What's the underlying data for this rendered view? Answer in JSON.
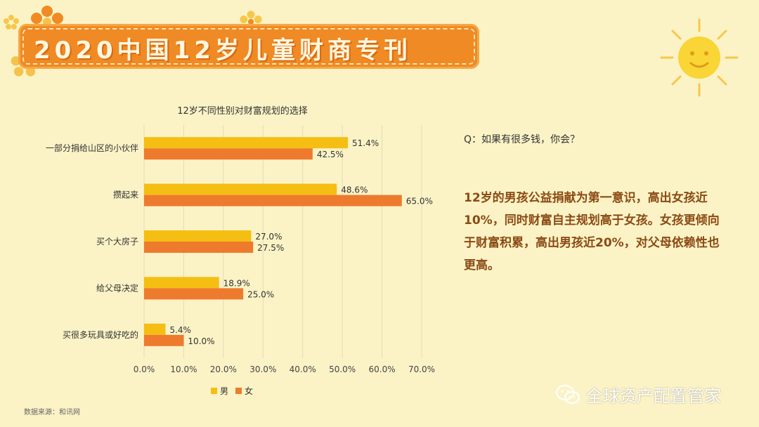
{
  "header": {
    "title": "2020中国12岁儿童财商专刊"
  },
  "chart_data": {
    "type": "bar",
    "orientation": "horizontal",
    "title": "12岁不同性别对财富规划的选择",
    "categories": [
      "一部分捐给山区的小伙伴",
      "攒起来",
      "买个大房子",
      "给父母决定",
      "买很多玩具或好吃的"
    ],
    "series": [
      {
        "name": "男",
        "values": [
          51.4,
          48.6,
          27.0,
          18.9,
          5.4
        ],
        "color": "#F5BE12"
      },
      {
        "name": "女",
        "values": [
          42.5,
          65.0,
          27.5,
          25.0,
          10.0
        ],
        "color": "#EE7A2E"
      }
    ],
    "value_labels": [
      [
        "51.4%",
        "48.6%",
        "27.0%",
        "18.9%",
        "5.4%"
      ],
      [
        "42.5%",
        "65.0%",
        "27.5%",
        "25.0%",
        "10.0%"
      ]
    ],
    "xlim": [
      0,
      70
    ],
    "xticks": [
      "0.0%",
      "10.0%",
      "20.0%",
      "30.0%",
      "40.0%",
      "50.0%",
      "60.0%",
      "70.0%"
    ],
    "grid": true,
    "legend_position": "bottom"
  },
  "source": "数据来源：和讯网",
  "question": "Q：如果有很多钱，你会？",
  "answer": "12岁的男孩公益捐献为第一意识，高出女孩近10%，同时财富自主规划高于女孩。女孩更倾向于财富积累，高出男孩近20%，对父母依赖性也更高。",
  "watermark": "全球资产配置管家"
}
